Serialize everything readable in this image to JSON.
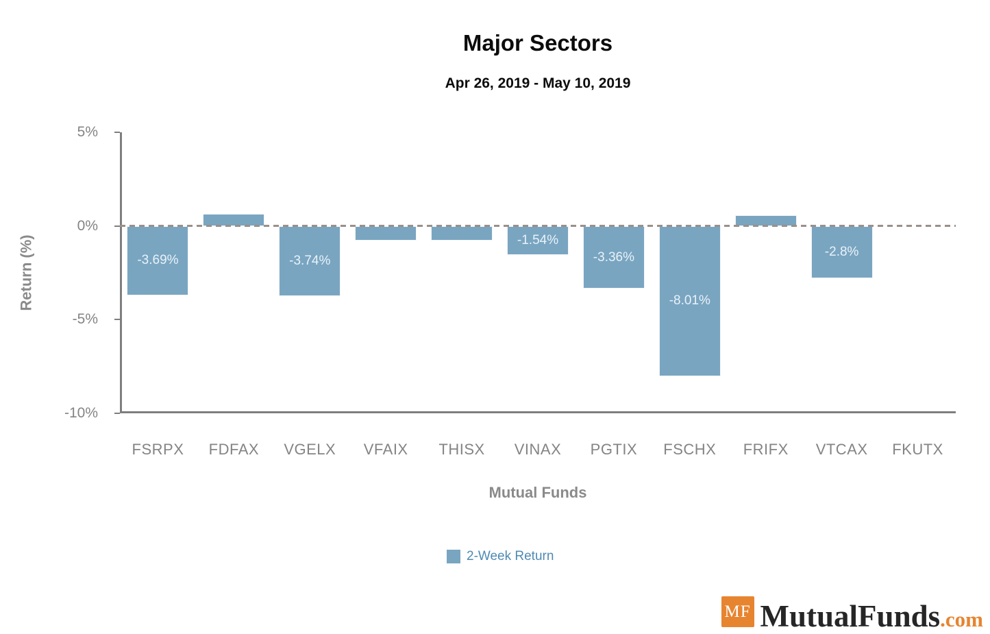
{
  "chart_data": {
    "type": "bar",
    "title": "Major Sectors",
    "subtitle": "Apr 26, 2019 - May 10, 2019",
    "xlabel": "Mutual Funds",
    "ylabel": "Return (%)",
    "categories": [
      "FSRPX",
      "FDFAX",
      "VGELX",
      "VFAIX",
      "THISX",
      "VINAX",
      "PGTIX",
      "FSCHX",
      "FRIFX",
      "VTCAX",
      "FKUTX"
    ],
    "series": [
      {
        "name": "2-Week Return",
        "values": [
          -3.69,
          0.66,
          -3.74,
          -0.77,
          -0.77,
          -1.54,
          -3.36,
          -8.01,
          0.59,
          -2.8,
          0
        ]
      }
    ],
    "bar_labels": [
      "-3.69%",
      "",
      "-3.74%",
      "",
      "",
      "-1.54%",
      "-3.36%",
      "-8.01%",
      "",
      "-2.8%",
      ""
    ],
    "ylim": [
      -10,
      5
    ],
    "yticks": [
      5,
      0,
      -5,
      -10
    ],
    "ytick_labels": [
      "5%",
      "0%",
      "-5%",
      "-10%"
    ],
    "grid": false,
    "zero_line": "dashed",
    "legend": {
      "label": "2-Week Return",
      "position": "bottom"
    }
  },
  "colors": {
    "bar": "#79a5c1",
    "bar_label_text": "#e9f2f8",
    "legend_text": "#4e8ab3",
    "axis_line": "#7e7e7e",
    "tick_text": "#848484",
    "axis_title_text": "#8a8a8a",
    "dashed_zero_line": "#9a908a",
    "title_text": "#0c0c0c",
    "logo_orange": "#e78430",
    "logo_name_text": "#262626"
  },
  "branding": {
    "logo_initials": "MF",
    "logo_name": "MutualFunds",
    "logo_tld": ".com"
  }
}
